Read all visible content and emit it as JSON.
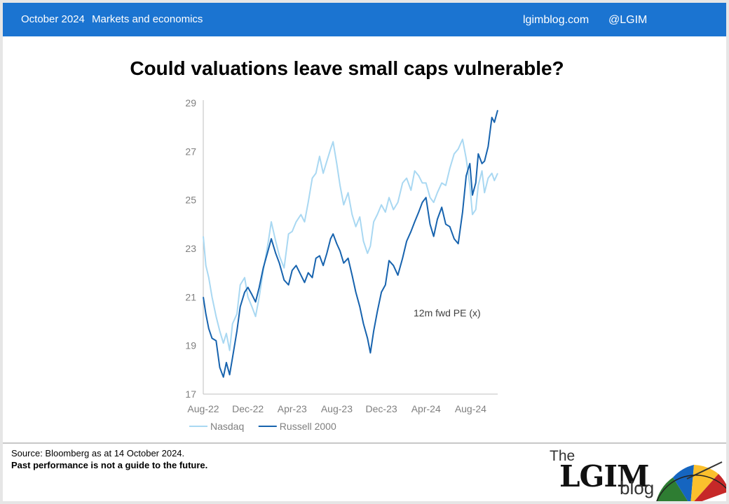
{
  "header": {
    "date": "October 2024",
    "topic": "Markets and economics",
    "site": "lgimblog.com",
    "handle": "@LGIM"
  },
  "title": "Could valuations leave small caps vulnerable?",
  "footer": {
    "source": "Source: Bloomberg as at 14 October 2024.",
    "disclaimer": "Past performance is not a guide to the future."
  },
  "logo": {
    "the": "The",
    "name": "LGIM",
    "blog": "blog"
  },
  "colors": {
    "bar": "#1b74d1",
    "nasdaq": "#a9d8f2",
    "russell": "#1763ae"
  },
  "chart_data": {
    "type": "line",
    "annotation": "12m fwd PE (x)",
    "ylim": [
      17,
      29
    ],
    "yticks": [
      17,
      19,
      21,
      23,
      25,
      27,
      29
    ],
    "xlim": [
      "2022-08-01",
      "2024-10-14"
    ],
    "xticks": [
      "Aug-22",
      "Dec-22",
      "Apr-23",
      "Aug-23",
      "Dec-23",
      "Apr-24",
      "Aug-24"
    ],
    "xtick_dates": [
      "2022-08-01",
      "2022-12-01",
      "2023-04-01",
      "2023-08-01",
      "2023-12-01",
      "2024-04-01",
      "2024-08-01"
    ],
    "legend_position": "bottom-left",
    "series": [
      {
        "name": "Nasdaq",
        "color": "#a9d8f2",
        "points": [
          [
            "2022-08-01",
            23.5
          ],
          [
            "2022-08-08",
            22.3
          ],
          [
            "2022-08-16",
            21.8
          ],
          [
            "2022-08-25",
            21.0
          ],
          [
            "2022-09-05",
            20.2
          ],
          [
            "2022-09-15",
            19.6
          ],
          [
            "2022-09-25",
            19.1
          ],
          [
            "2022-10-03",
            19.5
          ],
          [
            "2022-10-12",
            18.8
          ],
          [
            "2022-10-20",
            19.9
          ],
          [
            "2022-11-01",
            20.3
          ],
          [
            "2022-11-10",
            21.5
          ],
          [
            "2022-11-22",
            21.8
          ],
          [
            "2022-12-01",
            21.0
          ],
          [
            "2022-12-12",
            20.6
          ],
          [
            "2022-12-22",
            20.2
          ],
          [
            "2023-01-01",
            21.0
          ],
          [
            "2023-01-12",
            22.1
          ],
          [
            "2023-01-25",
            23.2
          ],
          [
            "2023-02-03",
            24.1
          ],
          [
            "2023-02-15",
            23.3
          ],
          [
            "2023-02-25",
            22.7
          ],
          [
            "2023-03-10",
            22.2
          ],
          [
            "2023-03-22",
            23.6
          ],
          [
            "2023-04-01",
            23.7
          ],
          [
            "2023-04-12",
            24.1
          ],
          [
            "2023-04-25",
            24.4
          ],
          [
            "2023-05-05",
            24.1
          ],
          [
            "2023-05-15",
            24.9
          ],
          [
            "2023-05-26",
            25.9
          ],
          [
            "2023-06-05",
            26.1
          ],
          [
            "2023-06-15",
            26.8
          ],
          [
            "2023-06-25",
            26.1
          ],
          [
            "2023-07-05",
            26.6
          ],
          [
            "2023-07-15",
            27.1
          ],
          [
            "2023-07-22",
            27.4
          ],
          [
            "2023-08-01",
            26.5
          ],
          [
            "2023-08-10",
            25.6
          ],
          [
            "2023-08-20",
            24.8
          ],
          [
            "2023-09-01",
            25.3
          ],
          [
            "2023-09-12",
            24.4
          ],
          [
            "2023-09-22",
            23.9
          ],
          [
            "2023-10-03",
            24.3
          ],
          [
            "2023-10-13",
            23.3
          ],
          [
            "2023-10-24",
            22.8
          ],
          [
            "2023-11-01",
            23.1
          ],
          [
            "2023-11-10",
            24.1
          ],
          [
            "2023-11-20",
            24.4
          ],
          [
            "2023-12-01",
            24.8
          ],
          [
            "2023-12-12",
            24.5
          ],
          [
            "2023-12-22",
            25.1
          ],
          [
            "2024-01-03",
            24.6
          ],
          [
            "2024-01-15",
            24.9
          ],
          [
            "2024-01-28",
            25.7
          ],
          [
            "2024-02-08",
            25.9
          ],
          [
            "2024-02-20",
            25.4
          ],
          [
            "2024-03-01",
            26.2
          ],
          [
            "2024-03-12",
            26.0
          ],
          [
            "2024-03-22",
            25.7
          ],
          [
            "2024-04-01",
            25.7
          ],
          [
            "2024-04-12",
            25.1
          ],
          [
            "2024-04-22",
            24.9
          ],
          [
            "2024-05-02",
            25.3
          ],
          [
            "2024-05-14",
            25.7
          ],
          [
            "2024-05-25",
            25.6
          ],
          [
            "2024-06-05",
            26.3
          ],
          [
            "2024-06-17",
            26.9
          ],
          [
            "2024-06-28",
            27.1
          ],
          [
            "2024-07-10",
            27.5
          ],
          [
            "2024-07-20",
            26.7
          ],
          [
            "2024-07-30",
            25.6
          ],
          [
            "2024-08-06",
            24.4
          ],
          [
            "2024-08-15",
            24.6
          ],
          [
            "2024-08-22",
            25.6
          ],
          [
            "2024-09-01",
            26.2
          ],
          [
            "2024-09-08",
            25.3
          ],
          [
            "2024-09-18",
            25.9
          ],
          [
            "2024-09-28",
            26.1
          ],
          [
            "2024-10-05",
            25.8
          ],
          [
            "2024-10-14",
            26.1
          ]
        ]
      },
      {
        "name": "Russell 2000",
        "color": "#1763ae",
        "points": [
          [
            "2022-08-01",
            21.0
          ],
          [
            "2022-08-08",
            20.3
          ],
          [
            "2022-08-16",
            19.7
          ],
          [
            "2022-08-25",
            19.3
          ],
          [
            "2022-09-05",
            19.2
          ],
          [
            "2022-09-15",
            18.1
          ],
          [
            "2022-09-25",
            17.7
          ],
          [
            "2022-10-03",
            18.3
          ],
          [
            "2022-10-12",
            17.8
          ],
          [
            "2022-10-20",
            18.5
          ],
          [
            "2022-11-01",
            19.6
          ],
          [
            "2022-11-10",
            20.6
          ],
          [
            "2022-11-22",
            21.2
          ],
          [
            "2022-12-01",
            21.4
          ],
          [
            "2022-12-12",
            21.1
          ],
          [
            "2022-12-22",
            20.8
          ],
          [
            "2023-01-01",
            21.4
          ],
          [
            "2023-01-12",
            22.2
          ],
          [
            "2023-01-25",
            22.9
          ],
          [
            "2023-02-03",
            23.4
          ],
          [
            "2023-02-15",
            22.8
          ],
          [
            "2023-02-25",
            22.4
          ],
          [
            "2023-03-10",
            21.7
          ],
          [
            "2023-03-22",
            21.5
          ],
          [
            "2023-04-01",
            22.1
          ],
          [
            "2023-04-12",
            22.3
          ],
          [
            "2023-04-25",
            21.9
          ],
          [
            "2023-05-05",
            21.6
          ],
          [
            "2023-05-15",
            22.0
          ],
          [
            "2023-05-26",
            21.8
          ],
          [
            "2023-06-05",
            22.6
          ],
          [
            "2023-06-15",
            22.7
          ],
          [
            "2023-06-25",
            22.3
          ],
          [
            "2023-07-05",
            22.8
          ],
          [
            "2023-07-15",
            23.4
          ],
          [
            "2023-07-22",
            23.6
          ],
          [
            "2023-08-01",
            23.2
          ],
          [
            "2023-08-10",
            22.9
          ],
          [
            "2023-08-20",
            22.4
          ],
          [
            "2023-09-01",
            22.6
          ],
          [
            "2023-09-12",
            21.9
          ],
          [
            "2023-09-22",
            21.2
          ],
          [
            "2023-10-03",
            20.6
          ],
          [
            "2023-10-13",
            19.9
          ],
          [
            "2023-10-24",
            19.3
          ],
          [
            "2023-11-01",
            18.7
          ],
          [
            "2023-11-10",
            19.6
          ],
          [
            "2023-11-20",
            20.4
          ],
          [
            "2023-12-01",
            21.2
          ],
          [
            "2023-12-12",
            21.5
          ],
          [
            "2023-12-22",
            22.5
          ],
          [
            "2024-01-03",
            22.3
          ],
          [
            "2024-01-15",
            21.9
          ],
          [
            "2024-01-28",
            22.6
          ],
          [
            "2024-02-08",
            23.3
          ],
          [
            "2024-02-20",
            23.7
          ],
          [
            "2024-03-01",
            24.1
          ],
          [
            "2024-03-12",
            24.5
          ],
          [
            "2024-03-22",
            24.9
          ],
          [
            "2024-04-01",
            25.1
          ],
          [
            "2024-04-12",
            24.0
          ],
          [
            "2024-04-22",
            23.5
          ],
          [
            "2024-05-02",
            24.2
          ],
          [
            "2024-05-14",
            24.7
          ],
          [
            "2024-05-25",
            24.0
          ],
          [
            "2024-06-05",
            23.9
          ],
          [
            "2024-06-17",
            23.4
          ],
          [
            "2024-06-28",
            23.2
          ],
          [
            "2024-07-10",
            24.5
          ],
          [
            "2024-07-20",
            26.0
          ],
          [
            "2024-07-30",
            26.5
          ],
          [
            "2024-08-06",
            25.2
          ],
          [
            "2024-08-15",
            25.7
          ],
          [
            "2024-08-22",
            26.9
          ],
          [
            "2024-09-01",
            26.5
          ],
          [
            "2024-09-08",
            26.6
          ],
          [
            "2024-09-18",
            27.2
          ],
          [
            "2024-09-28",
            28.4
          ],
          [
            "2024-10-05",
            28.2
          ],
          [
            "2024-10-14",
            28.7
          ]
        ]
      }
    ]
  }
}
